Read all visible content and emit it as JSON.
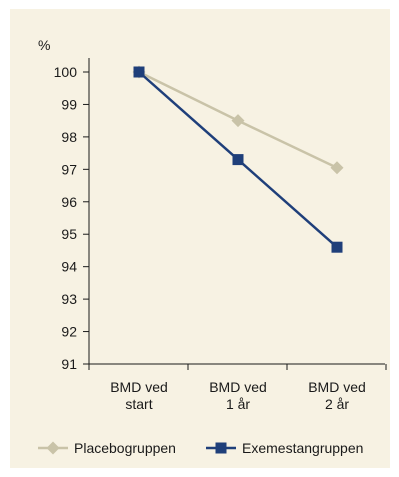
{
  "chart_data": {
    "type": "line",
    "title": "",
    "ylabel": "%",
    "xlabel": "",
    "ylim": [
      91,
      100
    ],
    "yticks": [
      91,
      92,
      93,
      94,
      95,
      96,
      97,
      98,
      99,
      100
    ],
    "categories": [
      [
        "BMD ved",
        "start"
      ],
      [
        "BMD ved",
        "1 år"
      ],
      [
        "BMD ved",
        "2 år"
      ]
    ],
    "series": [
      {
        "name": "Placebogruppen",
        "values": [
          100,
          98.5,
          97.05
        ],
        "color": "#c9c3a8",
        "marker": "diamond"
      },
      {
        "name": "Exemestangruppen",
        "values": [
          100,
          97.3,
          94.6
        ],
        "color": "#1f3f7a",
        "marker": "square"
      }
    ],
    "legend_position": "bottom",
    "grid": false,
    "background": "#f7f2e3"
  }
}
